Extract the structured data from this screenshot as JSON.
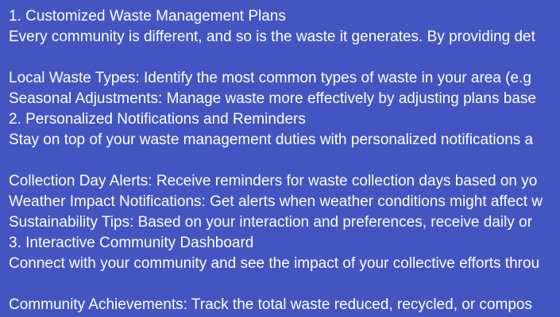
{
  "background_color": "#4355c1",
  "text_color": "#ffffff",
  "sections": [
    {
      "heading": "1. Customized Waste Management Plans",
      "intro": "Every community is different, and so is the waste it generates. By providing det",
      "items": [
        "Local Waste Types: Identify the most common types of waste in your area (e.g",
        "Seasonal Adjustments: Manage waste more effectively by adjusting plans base"
      ]
    },
    {
      "heading": "2. Personalized Notifications and Reminders",
      "intro": "Stay on top of your waste management duties with personalized notifications a",
      "items": [
        "Collection Day Alerts: Receive reminders for waste collection days based on yo",
        "Weather Impact Notifications: Get alerts when weather conditions might affect w",
        "Sustainability Tips: Based on your interaction and preferences, receive daily or"
      ]
    },
    {
      "heading": "3. Interactive Community Dashboard",
      "intro": "Connect with your community and see the impact of your collective efforts throu",
      "items": [
        "Community Achievements: Track the total waste reduced, recycled, or compos"
      ]
    }
  ]
}
